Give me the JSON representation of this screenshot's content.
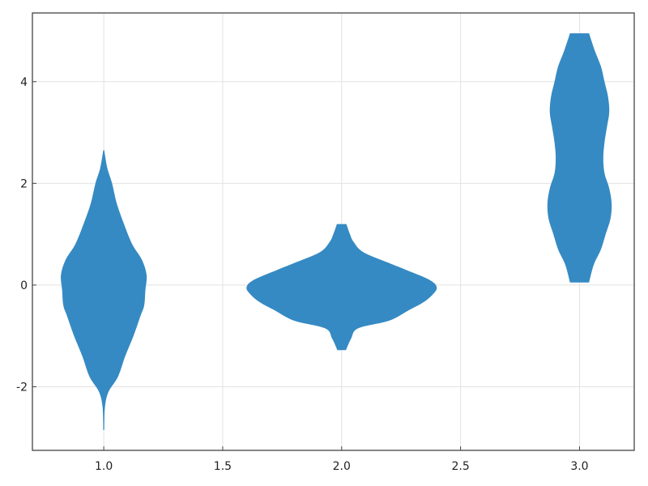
{
  "chart_data": {
    "type": "violin",
    "xlim": [
      0.7,
      3.23
    ],
    "ylim": [
      -3.25,
      5.35
    ],
    "grid": true,
    "x_ticks": [
      1.0,
      1.5,
      2.0,
      2.5,
      3.0
    ],
    "x_tick_labels": [
      "1.0",
      "1.5",
      "2.0",
      "2.5",
      "3.0"
    ],
    "y_ticks": [
      -2,
      0,
      2,
      4
    ],
    "y_tick_labels": [
      "-2",
      "0",
      "2",
      "4"
    ],
    "color": "#2e86c1",
    "violins": [
      {
        "position": 1.0,
        "ymin": -2.85,
        "ymax": 2.65,
        "profile": [
          [
            -2.85,
            0.002
          ],
          [
            -2.4,
            0.005
          ],
          [
            -2.1,
            0.02
          ],
          [
            -1.8,
            0.06
          ],
          [
            -1.4,
            0.09
          ],
          [
            -1.0,
            0.125
          ],
          [
            -0.6,
            0.155
          ],
          [
            -0.4,
            0.17
          ],
          [
            -0.1,
            0.175
          ],
          [
            0.2,
            0.18
          ],
          [
            0.5,
            0.16
          ],
          [
            0.8,
            0.12
          ],
          [
            1.2,
            0.085
          ],
          [
            1.6,
            0.055
          ],
          [
            2.0,
            0.035
          ],
          [
            2.3,
            0.015
          ],
          [
            2.65,
            0.002
          ]
        ]
      },
      {
        "position": 2.0,
        "ymin": -1.28,
        "ymax": 1.2,
        "profile": [
          [
            -1.28,
            0.018
          ],
          [
            -1.05,
            0.04
          ],
          [
            -0.85,
            0.07
          ],
          [
            -0.7,
            0.2
          ],
          [
            -0.5,
            0.28
          ],
          [
            -0.35,
            0.34
          ],
          [
            -0.2,
            0.38
          ],
          [
            -0.05,
            0.4
          ],
          [
            0.1,
            0.37
          ],
          [
            0.3,
            0.27
          ],
          [
            0.45,
            0.19
          ],
          [
            0.65,
            0.09
          ],
          [
            0.85,
            0.05
          ],
          [
            1.0,
            0.035
          ],
          [
            1.2,
            0.02
          ]
        ]
      },
      {
        "position": 3.0,
        "ymin": 0.05,
        "ymax": 4.95,
        "profile": [
          [
            0.05,
            0.04
          ],
          [
            0.4,
            0.06
          ],
          [
            0.7,
            0.09
          ],
          [
            1.0,
            0.11
          ],
          [
            1.3,
            0.13
          ],
          [
            1.6,
            0.135
          ],
          [
            1.9,
            0.125
          ],
          [
            2.2,
            0.105
          ],
          [
            2.5,
            0.1
          ],
          [
            2.8,
            0.105
          ],
          [
            3.1,
            0.115
          ],
          [
            3.4,
            0.125
          ],
          [
            3.7,
            0.12
          ],
          [
            4.0,
            0.105
          ],
          [
            4.3,
            0.09
          ],
          [
            4.6,
            0.065
          ],
          [
            4.95,
            0.04
          ]
        ]
      }
    ]
  }
}
